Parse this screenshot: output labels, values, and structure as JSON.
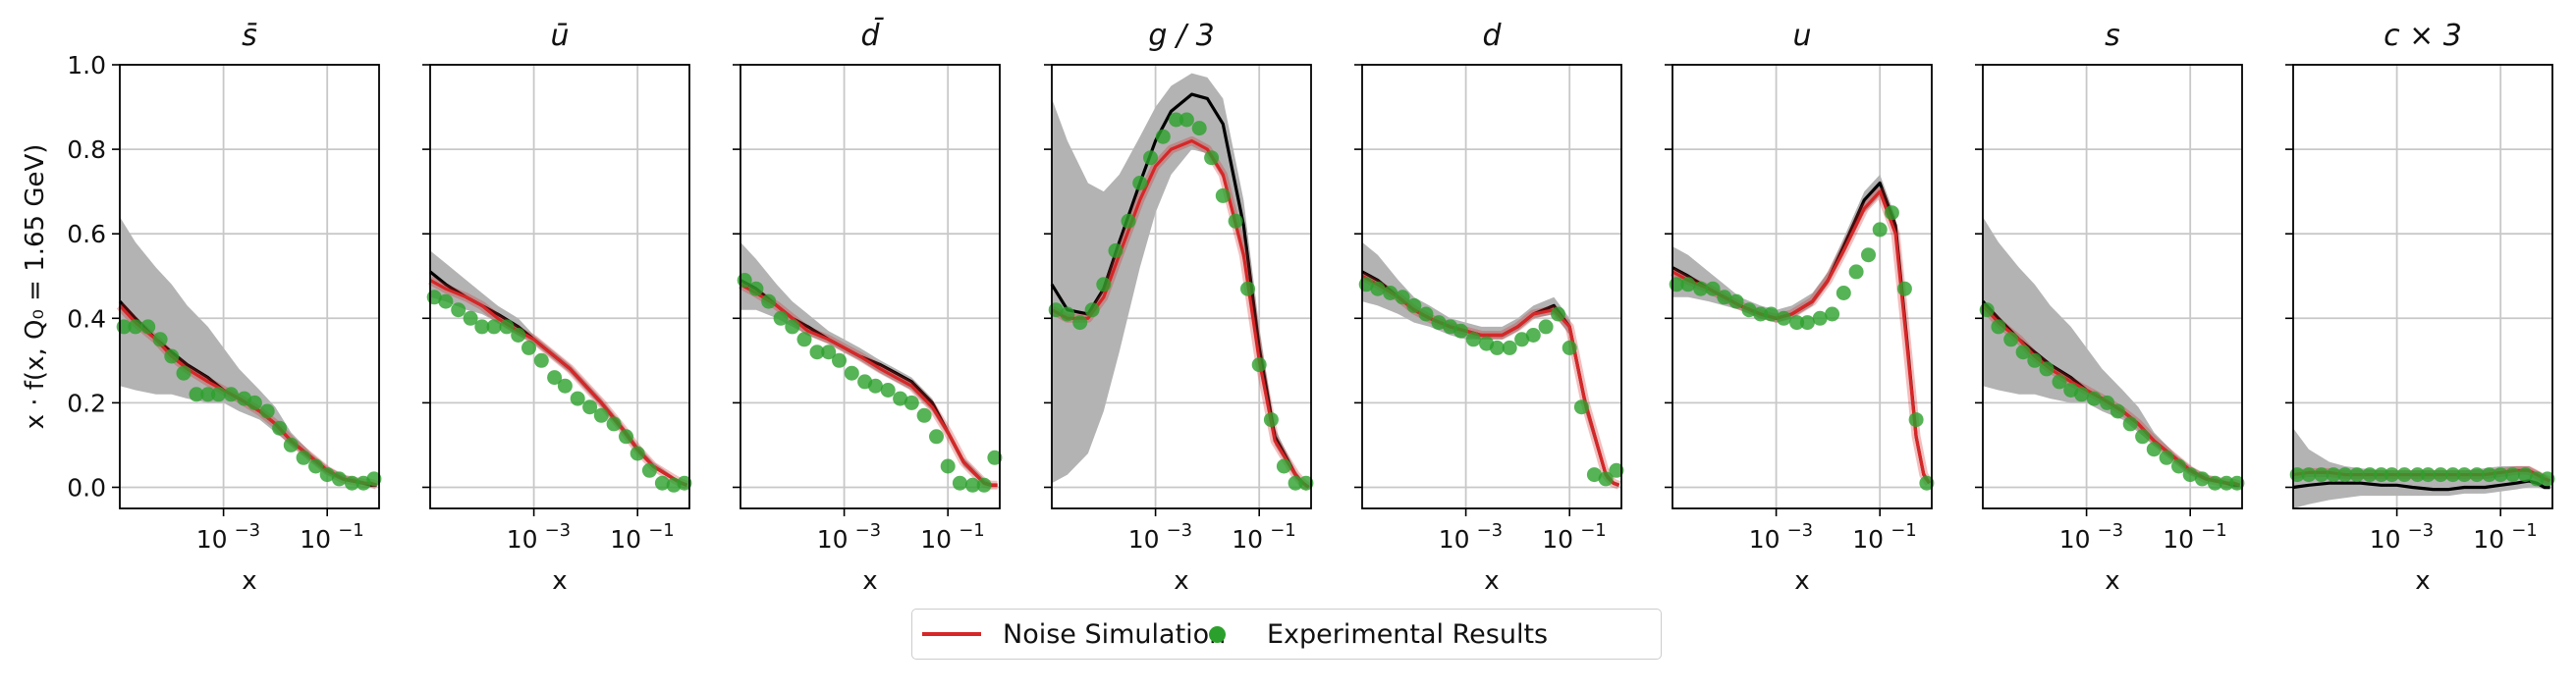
{
  "figure": {
    "ylabel": "x · f(x, Q₀ = 1.65 GeV)",
    "xlabel": "x",
    "yticks": [
      "0.0",
      "0.2",
      "0.4",
      "0.6",
      "0.8",
      "1.0"
    ],
    "xticks": [
      {
        "base": "10",
        "exp": "−3"
      },
      {
        "base": "10",
        "exp": "−1"
      }
    ]
  },
  "legend": {
    "noise_label": "Noise Simulation",
    "exp_label": "Experimental Results",
    "noise_color": "#d62728",
    "exp_color": "#2ca02c"
  },
  "chart_data": [
    {
      "type": "line",
      "title": "s̄",
      "xscale": "log",
      "xlim": [
        1e-05,
        1
      ],
      "ylim": [
        -0.05,
        1.0
      ],
      "x": [
        1e-05,
        2e-05,
        5e-05,
        0.0001,
        0.0002,
        0.0005,
        0.001,
        0.002,
        0.005,
        0.01,
        0.02,
        0.05,
        0.1,
        0.2,
        0.5,
        0.7,
        0.9
      ],
      "central": [
        0.44,
        0.4,
        0.35,
        0.32,
        0.29,
        0.26,
        0.23,
        0.21,
        0.18,
        0.15,
        0.11,
        0.07,
        0.04,
        0.02,
        0.01,
        0.005,
        0.005
      ],
      "noise": [
        0.43,
        0.39,
        0.35,
        0.31,
        0.28,
        0.25,
        0.23,
        0.21,
        0.18,
        0.15,
        0.11,
        0.07,
        0.04,
        0.02,
        0.01,
        0.01,
        0.005
      ],
      "band_lo": [
        0.24,
        0.23,
        0.22,
        0.22,
        0.21,
        0.2,
        0.2,
        0.18,
        0.16,
        0.13,
        0.1,
        0.06,
        0.03,
        0.015,
        0.005,
        0.0,
        0.0
      ],
      "band_hi": [
        0.64,
        0.58,
        0.52,
        0.48,
        0.43,
        0.38,
        0.33,
        0.28,
        0.23,
        0.19,
        0.13,
        0.08,
        0.05,
        0.03,
        0.015,
        0.01,
        0.01
      ],
      "exp_x": [
        1.2e-05,
        2e-05,
        3.5e-05,
        6e-05,
        0.0001,
        0.00017,
        0.0003,
        0.0005,
        0.0008,
        0.0014,
        0.0025,
        0.004,
        0.007,
        0.012,
        0.02,
        0.035,
        0.06,
        0.1,
        0.17,
        0.3,
        0.5,
        0.8
      ],
      "exp_y": [
        0.38,
        0.38,
        0.38,
        0.35,
        0.31,
        0.27,
        0.22,
        0.22,
        0.22,
        0.22,
        0.21,
        0.2,
        0.18,
        0.14,
        0.1,
        0.07,
        0.05,
        0.03,
        0.02,
        0.01,
        0.01,
        0.02
      ]
    },
    {
      "type": "line",
      "title": "ū",
      "xscale": "log",
      "xlim": [
        1e-05,
        1
      ],
      "ylim": [
        -0.05,
        1.0
      ],
      "x": [
        1e-05,
        2e-05,
        5e-05,
        0.0001,
        0.0002,
        0.0005,
        0.001,
        0.002,
        0.005,
        0.01,
        0.02,
        0.05,
        0.1,
        0.2,
        0.5,
        0.7,
        0.9
      ],
      "central": [
        0.51,
        0.48,
        0.45,
        0.43,
        0.41,
        0.38,
        0.35,
        0.32,
        0.28,
        0.24,
        0.2,
        0.14,
        0.09,
        0.05,
        0.02,
        0.01,
        0.005
      ],
      "noise": [
        0.49,
        0.47,
        0.45,
        0.43,
        0.4,
        0.37,
        0.35,
        0.32,
        0.28,
        0.24,
        0.2,
        0.14,
        0.09,
        0.05,
        0.02,
        0.01,
        0.005
      ],
      "band_lo": [
        0.45,
        0.44,
        0.42,
        0.41,
        0.39,
        0.36,
        0.34,
        0.31,
        0.27,
        0.23,
        0.19,
        0.13,
        0.08,
        0.045,
        0.015,
        0.005,
        0.0
      ],
      "band_hi": [
        0.56,
        0.53,
        0.49,
        0.46,
        0.43,
        0.4,
        0.36,
        0.33,
        0.29,
        0.25,
        0.21,
        0.15,
        0.1,
        0.06,
        0.025,
        0.015,
        0.01
      ],
      "exp_x": [
        1.2e-05,
        2e-05,
        3.5e-05,
        6e-05,
        0.0001,
        0.00017,
        0.0003,
        0.0005,
        0.0008,
        0.0014,
        0.0025,
        0.004,
        0.007,
        0.012,
        0.02,
        0.035,
        0.06,
        0.1,
        0.17,
        0.3,
        0.5,
        0.8
      ],
      "exp_y": [
        0.45,
        0.44,
        0.42,
        0.4,
        0.38,
        0.38,
        0.38,
        0.36,
        0.33,
        0.3,
        0.26,
        0.24,
        0.21,
        0.19,
        0.17,
        0.15,
        0.12,
        0.08,
        0.04,
        0.01,
        0.005,
        0.01
      ]
    },
    {
      "type": "line",
      "title": "d̄",
      "xscale": "log",
      "xlim": [
        1e-05,
        1
      ],
      "ylim": [
        -0.05,
        1.0
      ],
      "x": [
        1e-05,
        2e-05,
        5e-05,
        0.0001,
        0.0002,
        0.0005,
        0.001,
        0.002,
        0.005,
        0.01,
        0.02,
        0.05,
        0.1,
        0.2,
        0.5,
        0.7,
        0.9
      ],
      "central": [
        0.49,
        0.47,
        0.43,
        0.4,
        0.38,
        0.35,
        0.33,
        0.31,
        0.29,
        0.27,
        0.25,
        0.2,
        0.13,
        0.06,
        0.01,
        0.005,
        0.005
      ],
      "noise": [
        0.48,
        0.46,
        0.43,
        0.4,
        0.37,
        0.35,
        0.33,
        0.31,
        0.28,
        0.26,
        0.24,
        0.19,
        0.13,
        0.06,
        0.01,
        0.005,
        0.005
      ],
      "band_lo": [
        0.42,
        0.42,
        0.4,
        0.38,
        0.36,
        0.34,
        0.32,
        0.3,
        0.27,
        0.25,
        0.23,
        0.18,
        0.12,
        0.05,
        0.005,
        0.0,
        0.0
      ],
      "band_hi": [
        0.58,
        0.54,
        0.48,
        0.44,
        0.41,
        0.37,
        0.35,
        0.33,
        0.3,
        0.28,
        0.26,
        0.21,
        0.14,
        0.07,
        0.02,
        0.01,
        0.01
      ],
      "exp_x": [
        1.2e-05,
        2e-05,
        3.5e-05,
        6e-05,
        0.0001,
        0.00017,
        0.0003,
        0.0005,
        0.0008,
        0.0014,
        0.0025,
        0.004,
        0.007,
        0.012,
        0.02,
        0.035,
        0.06,
        0.1,
        0.17,
        0.3,
        0.5,
        0.8
      ],
      "exp_y": [
        0.49,
        0.47,
        0.44,
        0.4,
        0.38,
        0.35,
        0.32,
        0.32,
        0.3,
        0.27,
        0.25,
        0.24,
        0.23,
        0.21,
        0.2,
        0.17,
        0.12,
        0.05,
        0.01,
        0.005,
        0.005,
        0.07
      ]
    },
    {
      "type": "line",
      "title": "g / 3",
      "xscale": "log",
      "xlim": [
        1e-05,
        1
      ],
      "ylim": [
        -0.05,
        1.0
      ],
      "x": [
        1e-05,
        2e-05,
        5e-05,
        0.0001,
        0.0002,
        0.0005,
        0.001,
        0.002,
        0.005,
        0.01,
        0.02,
        0.05,
        0.1,
        0.2,
        0.5,
        0.7,
        0.9
      ],
      "central": [
        0.48,
        0.42,
        0.41,
        0.47,
        0.58,
        0.72,
        0.82,
        0.89,
        0.93,
        0.92,
        0.86,
        0.62,
        0.33,
        0.12,
        0.03,
        0.01,
        0.0
      ],
      "noise": [
        0.42,
        0.4,
        0.4,
        0.45,
        0.55,
        0.68,
        0.76,
        0.8,
        0.82,
        0.8,
        0.74,
        0.55,
        0.3,
        0.11,
        0.03,
        0.01,
        0.0
      ],
      "band_lo": [
        0.01,
        0.03,
        0.08,
        0.18,
        0.32,
        0.52,
        0.65,
        0.74,
        0.8,
        0.79,
        0.73,
        0.53,
        0.28,
        0.1,
        0.02,
        0.005,
        0.0
      ],
      "band_hi": [
        0.92,
        0.82,
        0.72,
        0.7,
        0.74,
        0.83,
        0.9,
        0.95,
        0.98,
        0.97,
        0.92,
        0.68,
        0.38,
        0.14,
        0.04,
        0.015,
        0.005
      ],
      "exp_x": [
        1.2e-05,
        2e-05,
        3.5e-05,
        6e-05,
        0.0001,
        0.00017,
        0.0003,
        0.0005,
        0.0008,
        0.0014,
        0.0025,
        0.004,
        0.007,
        0.012,
        0.02,
        0.035,
        0.06,
        0.1,
        0.17,
        0.3,
        0.5,
        0.8
      ],
      "exp_y": [
        0.42,
        0.41,
        0.39,
        0.42,
        0.48,
        0.56,
        0.63,
        0.72,
        0.78,
        0.83,
        0.87,
        0.87,
        0.85,
        0.78,
        0.69,
        0.63,
        0.47,
        0.29,
        0.16,
        0.05,
        0.01,
        0.01
      ]
    },
    {
      "type": "line",
      "title": "d",
      "xscale": "log",
      "xlim": [
        1e-05,
        1
      ],
      "ylim": [
        -0.05,
        1.0
      ],
      "x": [
        1e-05,
        2e-05,
        5e-05,
        0.0001,
        0.0002,
        0.0005,
        0.001,
        0.002,
        0.005,
        0.01,
        0.02,
        0.05,
        0.1,
        0.2,
        0.5,
        0.7,
        0.9
      ],
      "central": [
        0.51,
        0.49,
        0.45,
        0.42,
        0.4,
        0.38,
        0.37,
        0.36,
        0.36,
        0.38,
        0.41,
        0.43,
        0.38,
        0.2,
        0.03,
        0.01,
        0.005
      ],
      "noise": [
        0.5,
        0.48,
        0.45,
        0.42,
        0.4,
        0.38,
        0.37,
        0.36,
        0.36,
        0.38,
        0.41,
        0.42,
        0.38,
        0.2,
        0.03,
        0.01,
        0.005
      ],
      "band_lo": [
        0.44,
        0.43,
        0.41,
        0.39,
        0.38,
        0.36,
        0.35,
        0.35,
        0.35,
        0.37,
        0.4,
        0.41,
        0.36,
        0.18,
        0.02,
        0.005,
        0.0
      ],
      "band_hi": [
        0.58,
        0.55,
        0.49,
        0.45,
        0.43,
        0.4,
        0.39,
        0.38,
        0.38,
        0.4,
        0.43,
        0.45,
        0.4,
        0.22,
        0.04,
        0.015,
        0.01
      ],
      "exp_x": [
        1.2e-05,
        2e-05,
        3.5e-05,
        6e-05,
        0.0001,
        0.00017,
        0.0003,
        0.0005,
        0.0008,
        0.0014,
        0.0025,
        0.004,
        0.007,
        0.012,
        0.02,
        0.035,
        0.06,
        0.1,
        0.17,
        0.3,
        0.5,
        0.8
      ],
      "exp_y": [
        0.48,
        0.47,
        0.46,
        0.45,
        0.43,
        0.41,
        0.39,
        0.38,
        0.37,
        0.35,
        0.34,
        0.33,
        0.33,
        0.35,
        0.36,
        0.38,
        0.41,
        0.33,
        0.19,
        0.03,
        0.02,
        0.04
      ]
    },
    {
      "type": "line",
      "title": "u",
      "xscale": "log",
      "xlim": [
        1e-05,
        1
      ],
      "ylim": [
        -0.05,
        1.0
      ],
      "x": [
        1e-05,
        2e-05,
        5e-05,
        0.0001,
        0.0002,
        0.0005,
        0.001,
        0.002,
        0.005,
        0.01,
        0.02,
        0.05,
        0.1,
        0.2,
        0.35,
        0.5,
        0.7,
        0.9
      ],
      "central": [
        0.52,
        0.5,
        0.47,
        0.45,
        0.43,
        0.41,
        0.4,
        0.41,
        0.44,
        0.49,
        0.57,
        0.68,
        0.72,
        0.62,
        0.32,
        0.12,
        0.03,
        0.01
      ],
      "noise": [
        0.51,
        0.49,
        0.47,
        0.45,
        0.43,
        0.41,
        0.4,
        0.41,
        0.44,
        0.49,
        0.56,
        0.66,
        0.7,
        0.6,
        0.31,
        0.12,
        0.03,
        0.01
      ],
      "band_lo": [
        0.45,
        0.45,
        0.44,
        0.43,
        0.42,
        0.4,
        0.39,
        0.4,
        0.43,
        0.48,
        0.55,
        0.65,
        0.69,
        0.59,
        0.3,
        0.11,
        0.02,
        0.005
      ],
      "band_hi": [
        0.57,
        0.55,
        0.51,
        0.48,
        0.45,
        0.43,
        0.42,
        0.43,
        0.46,
        0.51,
        0.59,
        0.7,
        0.74,
        0.64,
        0.34,
        0.13,
        0.04,
        0.015
      ],
      "exp_x": [
        1.2e-05,
        2e-05,
        3.5e-05,
        6e-05,
        0.0001,
        0.00017,
        0.0003,
        0.0005,
        0.0008,
        0.0014,
        0.0025,
        0.004,
        0.007,
        0.012,
        0.02,
        0.035,
        0.06,
        0.1,
        0.17,
        0.3,
        0.5,
        0.8
      ],
      "exp_y": [
        0.48,
        0.48,
        0.47,
        0.47,
        0.45,
        0.44,
        0.42,
        0.41,
        0.41,
        0.4,
        0.39,
        0.39,
        0.4,
        0.41,
        0.46,
        0.51,
        0.55,
        0.61,
        0.65,
        0.47,
        0.16,
        0.01
      ]
    },
    {
      "type": "line",
      "title": "s",
      "xscale": "log",
      "xlim": [
        1e-05,
        1
      ],
      "ylim": [
        -0.05,
        1.0
      ],
      "x": [
        1e-05,
        2e-05,
        5e-05,
        0.0001,
        0.0002,
        0.0005,
        0.001,
        0.002,
        0.005,
        0.01,
        0.02,
        0.05,
        0.1,
        0.2,
        0.5,
        0.7,
        0.9
      ],
      "central": [
        0.44,
        0.4,
        0.35,
        0.32,
        0.29,
        0.26,
        0.23,
        0.21,
        0.18,
        0.15,
        0.11,
        0.07,
        0.04,
        0.02,
        0.01,
        0.005,
        0.005
      ],
      "noise": [
        0.43,
        0.39,
        0.35,
        0.31,
        0.28,
        0.25,
        0.23,
        0.21,
        0.18,
        0.15,
        0.11,
        0.07,
        0.04,
        0.02,
        0.01,
        0.01,
        0.005
      ],
      "band_lo": [
        0.24,
        0.23,
        0.22,
        0.22,
        0.21,
        0.2,
        0.2,
        0.18,
        0.16,
        0.13,
        0.1,
        0.06,
        0.03,
        0.015,
        0.005,
        0.0,
        0.0
      ],
      "band_hi": [
        0.64,
        0.58,
        0.52,
        0.48,
        0.43,
        0.38,
        0.33,
        0.28,
        0.23,
        0.19,
        0.13,
        0.08,
        0.05,
        0.03,
        0.015,
        0.01,
        0.01
      ],
      "exp_x": [
        1.2e-05,
        2e-05,
        3.5e-05,
        6e-05,
        0.0001,
        0.00017,
        0.0003,
        0.0005,
        0.0008,
        0.0014,
        0.0025,
        0.004,
        0.007,
        0.012,
        0.02,
        0.035,
        0.06,
        0.1,
        0.17,
        0.3,
        0.5,
        0.8
      ],
      "exp_y": [
        0.42,
        0.38,
        0.35,
        0.32,
        0.3,
        0.28,
        0.25,
        0.23,
        0.22,
        0.21,
        0.2,
        0.18,
        0.15,
        0.12,
        0.09,
        0.07,
        0.05,
        0.03,
        0.02,
        0.01,
        0.01,
        0.01
      ]
    },
    {
      "type": "line",
      "title": "c × 3",
      "xscale": "log",
      "xlim": [
        1e-05,
        1
      ],
      "ylim": [
        -0.05,
        1.0
      ],
      "x": [
        1e-05,
        2e-05,
        5e-05,
        0.0001,
        0.0002,
        0.0005,
        0.001,
        0.002,
        0.005,
        0.01,
        0.02,
        0.05,
        0.1,
        0.2,
        0.35,
        0.5,
        0.7,
        0.9
      ],
      "central": [
        0.0,
        0.005,
        0.01,
        0.01,
        0.01,
        0.005,
        0.005,
        0.0,
        -0.005,
        -0.005,
        0.0,
        0.0,
        0.005,
        0.01,
        0.015,
        0.01,
        0.0,
        0.0
      ],
      "noise": [
        0.03,
        0.035,
        0.035,
        0.03,
        0.03,
        0.03,
        0.03,
        0.03,
        0.03,
        0.03,
        0.03,
        0.03,
        0.035,
        0.04,
        0.04,
        0.03,
        0.02,
        0.015
      ],
      "band_lo": [
        -0.05,
        -0.04,
        -0.03,
        -0.025,
        -0.02,
        -0.02,
        -0.02,
        -0.02,
        -0.02,
        -0.02,
        -0.015,
        -0.015,
        -0.01,
        -0.005,
        0.0,
        0.0,
        -0.005,
        -0.005
      ],
      "band_hi": [
        0.14,
        0.09,
        0.06,
        0.05,
        0.045,
        0.04,
        0.04,
        0.04,
        0.04,
        0.04,
        0.04,
        0.045,
        0.05,
        0.05,
        0.05,
        0.04,
        0.03,
        0.02
      ],
      "exp_x": [
        1.2e-05,
        2e-05,
        3.5e-05,
        6e-05,
        0.0001,
        0.00017,
        0.0003,
        0.0005,
        0.0008,
        0.0014,
        0.0025,
        0.004,
        0.007,
        0.012,
        0.02,
        0.035,
        0.06,
        0.1,
        0.17,
        0.3,
        0.5,
        0.8
      ],
      "exp_y": [
        0.03,
        0.03,
        0.03,
        0.03,
        0.03,
        0.03,
        0.03,
        0.03,
        0.03,
        0.03,
        0.03,
        0.03,
        0.03,
        0.03,
        0.03,
        0.03,
        0.03,
        0.03,
        0.03,
        0.03,
        0.02,
        0.02
      ]
    }
  ]
}
